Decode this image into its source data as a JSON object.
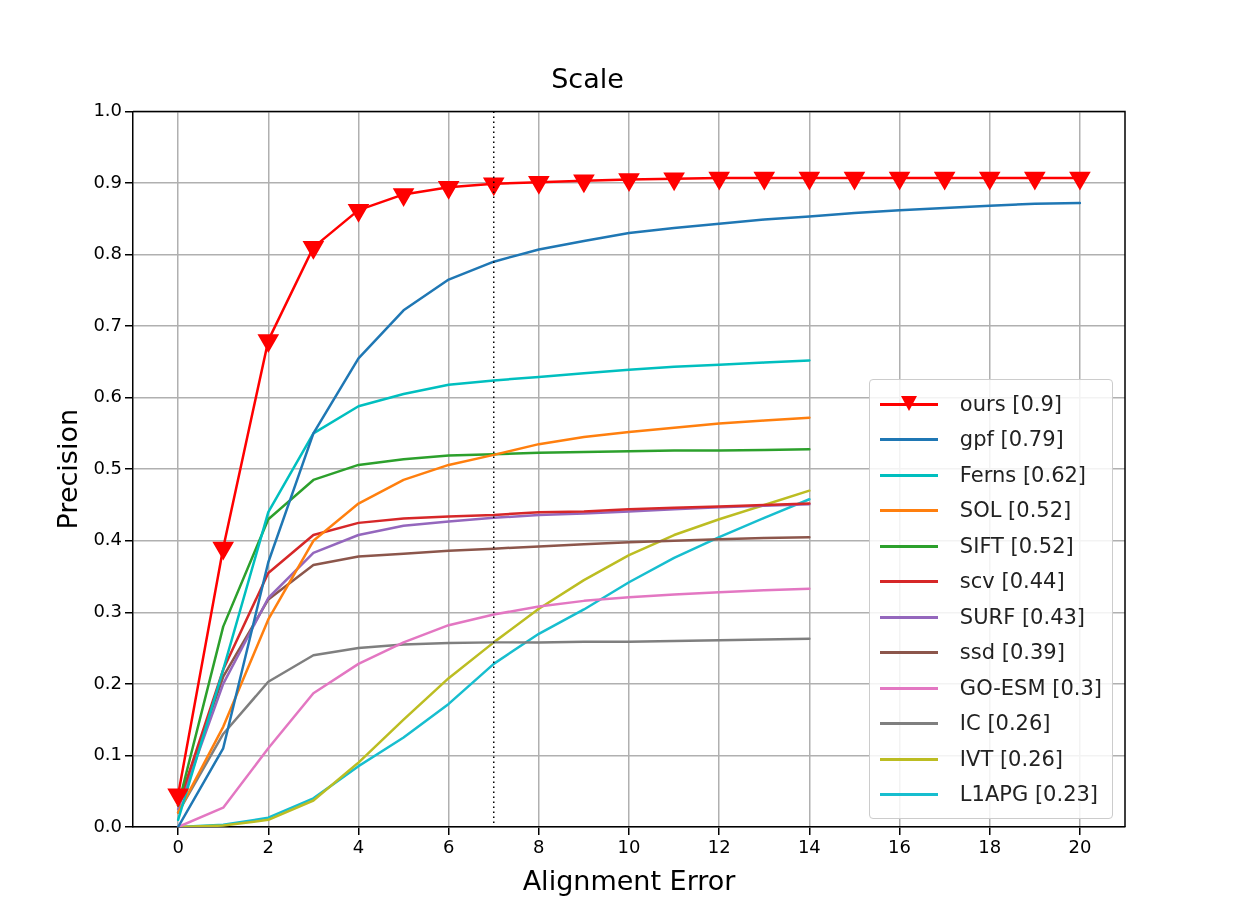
{
  "chart_data": {
    "type": "line",
    "title": "Scale",
    "xlabel": "Alignment Error",
    "ylabel": "Precision",
    "x": [
      0,
      1,
      2,
      3,
      4,
      5,
      6,
      7,
      8,
      9,
      10,
      11,
      12,
      13,
      14,
      15,
      16,
      17,
      18,
      19,
      20
    ],
    "xlim": [
      -1,
      21
    ],
    "xticks": [
      0,
      2,
      4,
      6,
      8,
      10,
      12,
      14,
      16,
      18,
      20
    ],
    "ylim": [
      0,
      1
    ],
    "yticks": [
      {
        "value": 0,
        "label": "0.0"
      },
      0.1,
      0.2,
      0.3,
      0.4,
      0.5,
      0.6,
      0.7,
      0.8,
      0.9,
      {
        "value": 1,
        "label": "1.0"
      }
    ],
    "grid": true,
    "legend": "right",
    "marker": "none",
    "line_style": "solid",
    "ref_lines": [
      {
        "axis": "x",
        "value": 7,
        "color": "#000000",
        "line_style": "dotted"
      }
    ],
    "series": [
      {
        "name": "ours [0.9]",
        "color": "#ff0000",
        "marker": "triangle",
        "values": [
          0.045,
          0.39,
          0.68,
          0.81,
          0.862,
          0.884,
          0.894,
          0.899,
          0.901,
          0.903,
          0.905,
          0.906,
          0.907,
          0.907,
          0.907,
          0.907,
          0.907,
          0.907,
          0.907,
          0.907,
          0.907
        ]
      },
      {
        "name": "gpf [0.79]",
        "color": "#1f77b4",
        "values": [
          0.0,
          0.11,
          0.37,
          0.55,
          0.655,
          0.722,
          0.765,
          0.79,
          0.807,
          0.819,
          0.83,
          0.837,
          0.843,
          0.849,
          0.853,
          0.858,
          0.862,
          0.865,
          0.868,
          0.871,
          0.872
        ]
      },
      {
        "name": "Ferns [0.62]",
        "color": "#00bfbf",
        "values": [
          0.01,
          0.22,
          0.44,
          0.55,
          0.588,
          0.605,
          0.618,
          0.624,
          0.629,
          0.634,
          0.639,
          0.643,
          0.646,
          0.649,
          0.652,
          null,
          null,
          null,
          null,
          null,
          null
        ]
      },
      {
        "name": "SOL [0.52]",
        "color": "#ff7f0e",
        "values": [
          0.02,
          0.14,
          0.29,
          0.4,
          0.452,
          0.485,
          0.506,
          0.52,
          0.535,
          0.545,
          0.552,
          0.558,
          0.564,
          0.568,
          0.572,
          null,
          null,
          null,
          null,
          null,
          null
        ]
      },
      {
        "name": "SIFT [0.52]",
        "color": "#2ca02c",
        "values": [
          0.03,
          0.28,
          0.43,
          0.485,
          0.506,
          0.514,
          0.519,
          0.521,
          0.523,
          0.524,
          0.525,
          0.526,
          0.526,
          0.527,
          0.528,
          null,
          null,
          null,
          null,
          null,
          null
        ]
      },
      {
        "name": "scv [0.44]",
        "color": "#d62728",
        "values": [
          0.03,
          0.22,
          0.355,
          0.408,
          0.425,
          0.431,
          0.434,
          0.436,
          0.44,
          0.441,
          0.444,
          0.446,
          0.448,
          0.45,
          0.452,
          null,
          null,
          null,
          null,
          null,
          null
        ]
      },
      {
        "name": "SURF [0.43]",
        "color": "#9467bd",
        "values": [
          0.025,
          0.2,
          0.32,
          0.383,
          0.408,
          0.421,
          0.427,
          0.432,
          0.436,
          0.438,
          0.441,
          0.444,
          0.447,
          0.449,
          0.451,
          null,
          null,
          null,
          null,
          null,
          null
        ]
      },
      {
        "name": "ssd [0.39]",
        "color": "#8c564b",
        "values": [
          0.03,
          0.21,
          0.318,
          0.366,
          0.378,
          0.382,
          0.386,
          0.389,
          0.392,
          0.395,
          0.398,
          0.4,
          0.402,
          0.404,
          0.405,
          null,
          null,
          null,
          null,
          null,
          null
        ]
      },
      {
        "name": "GO-ESM [0.3]",
        "color": "#e377c2",
        "values": [
          0.0,
          0.027,
          0.11,
          0.187,
          0.228,
          0.258,
          0.282,
          0.297,
          0.308,
          0.316,
          0.321,
          0.325,
          0.328,
          0.331,
          0.333,
          null,
          null,
          null,
          null,
          null,
          null
        ]
      },
      {
        "name": "IC [0.26]",
        "color": "#7f7f7f",
        "values": [
          0.02,
          0.13,
          0.203,
          0.24,
          0.25,
          0.255,
          0.257,
          0.258,
          0.258,
          0.259,
          0.259,
          0.26,
          0.261,
          0.262,
          0.263,
          null,
          null,
          null,
          null,
          null,
          null
        ]
      },
      {
        "name": "IVT [0.26]",
        "color": "#bcbd22",
        "values": [
          0.0,
          0.002,
          0.01,
          0.037,
          0.09,
          0.15,
          0.208,
          0.258,
          0.305,
          0.345,
          0.38,
          0.408,
          0.43,
          0.45,
          0.47,
          null,
          null,
          null,
          null,
          null,
          null
        ]
      },
      {
        "name": "L1APG [0.23]",
        "color": "#17becf",
        "values": [
          0.0,
          0.003,
          0.013,
          0.04,
          0.085,
          0.125,
          0.172,
          0.228,
          0.27,
          0.304,
          0.342,
          0.376,
          0.405,
          0.432,
          0.458,
          null,
          null,
          null,
          null,
          null,
          null
        ]
      }
    ]
  }
}
